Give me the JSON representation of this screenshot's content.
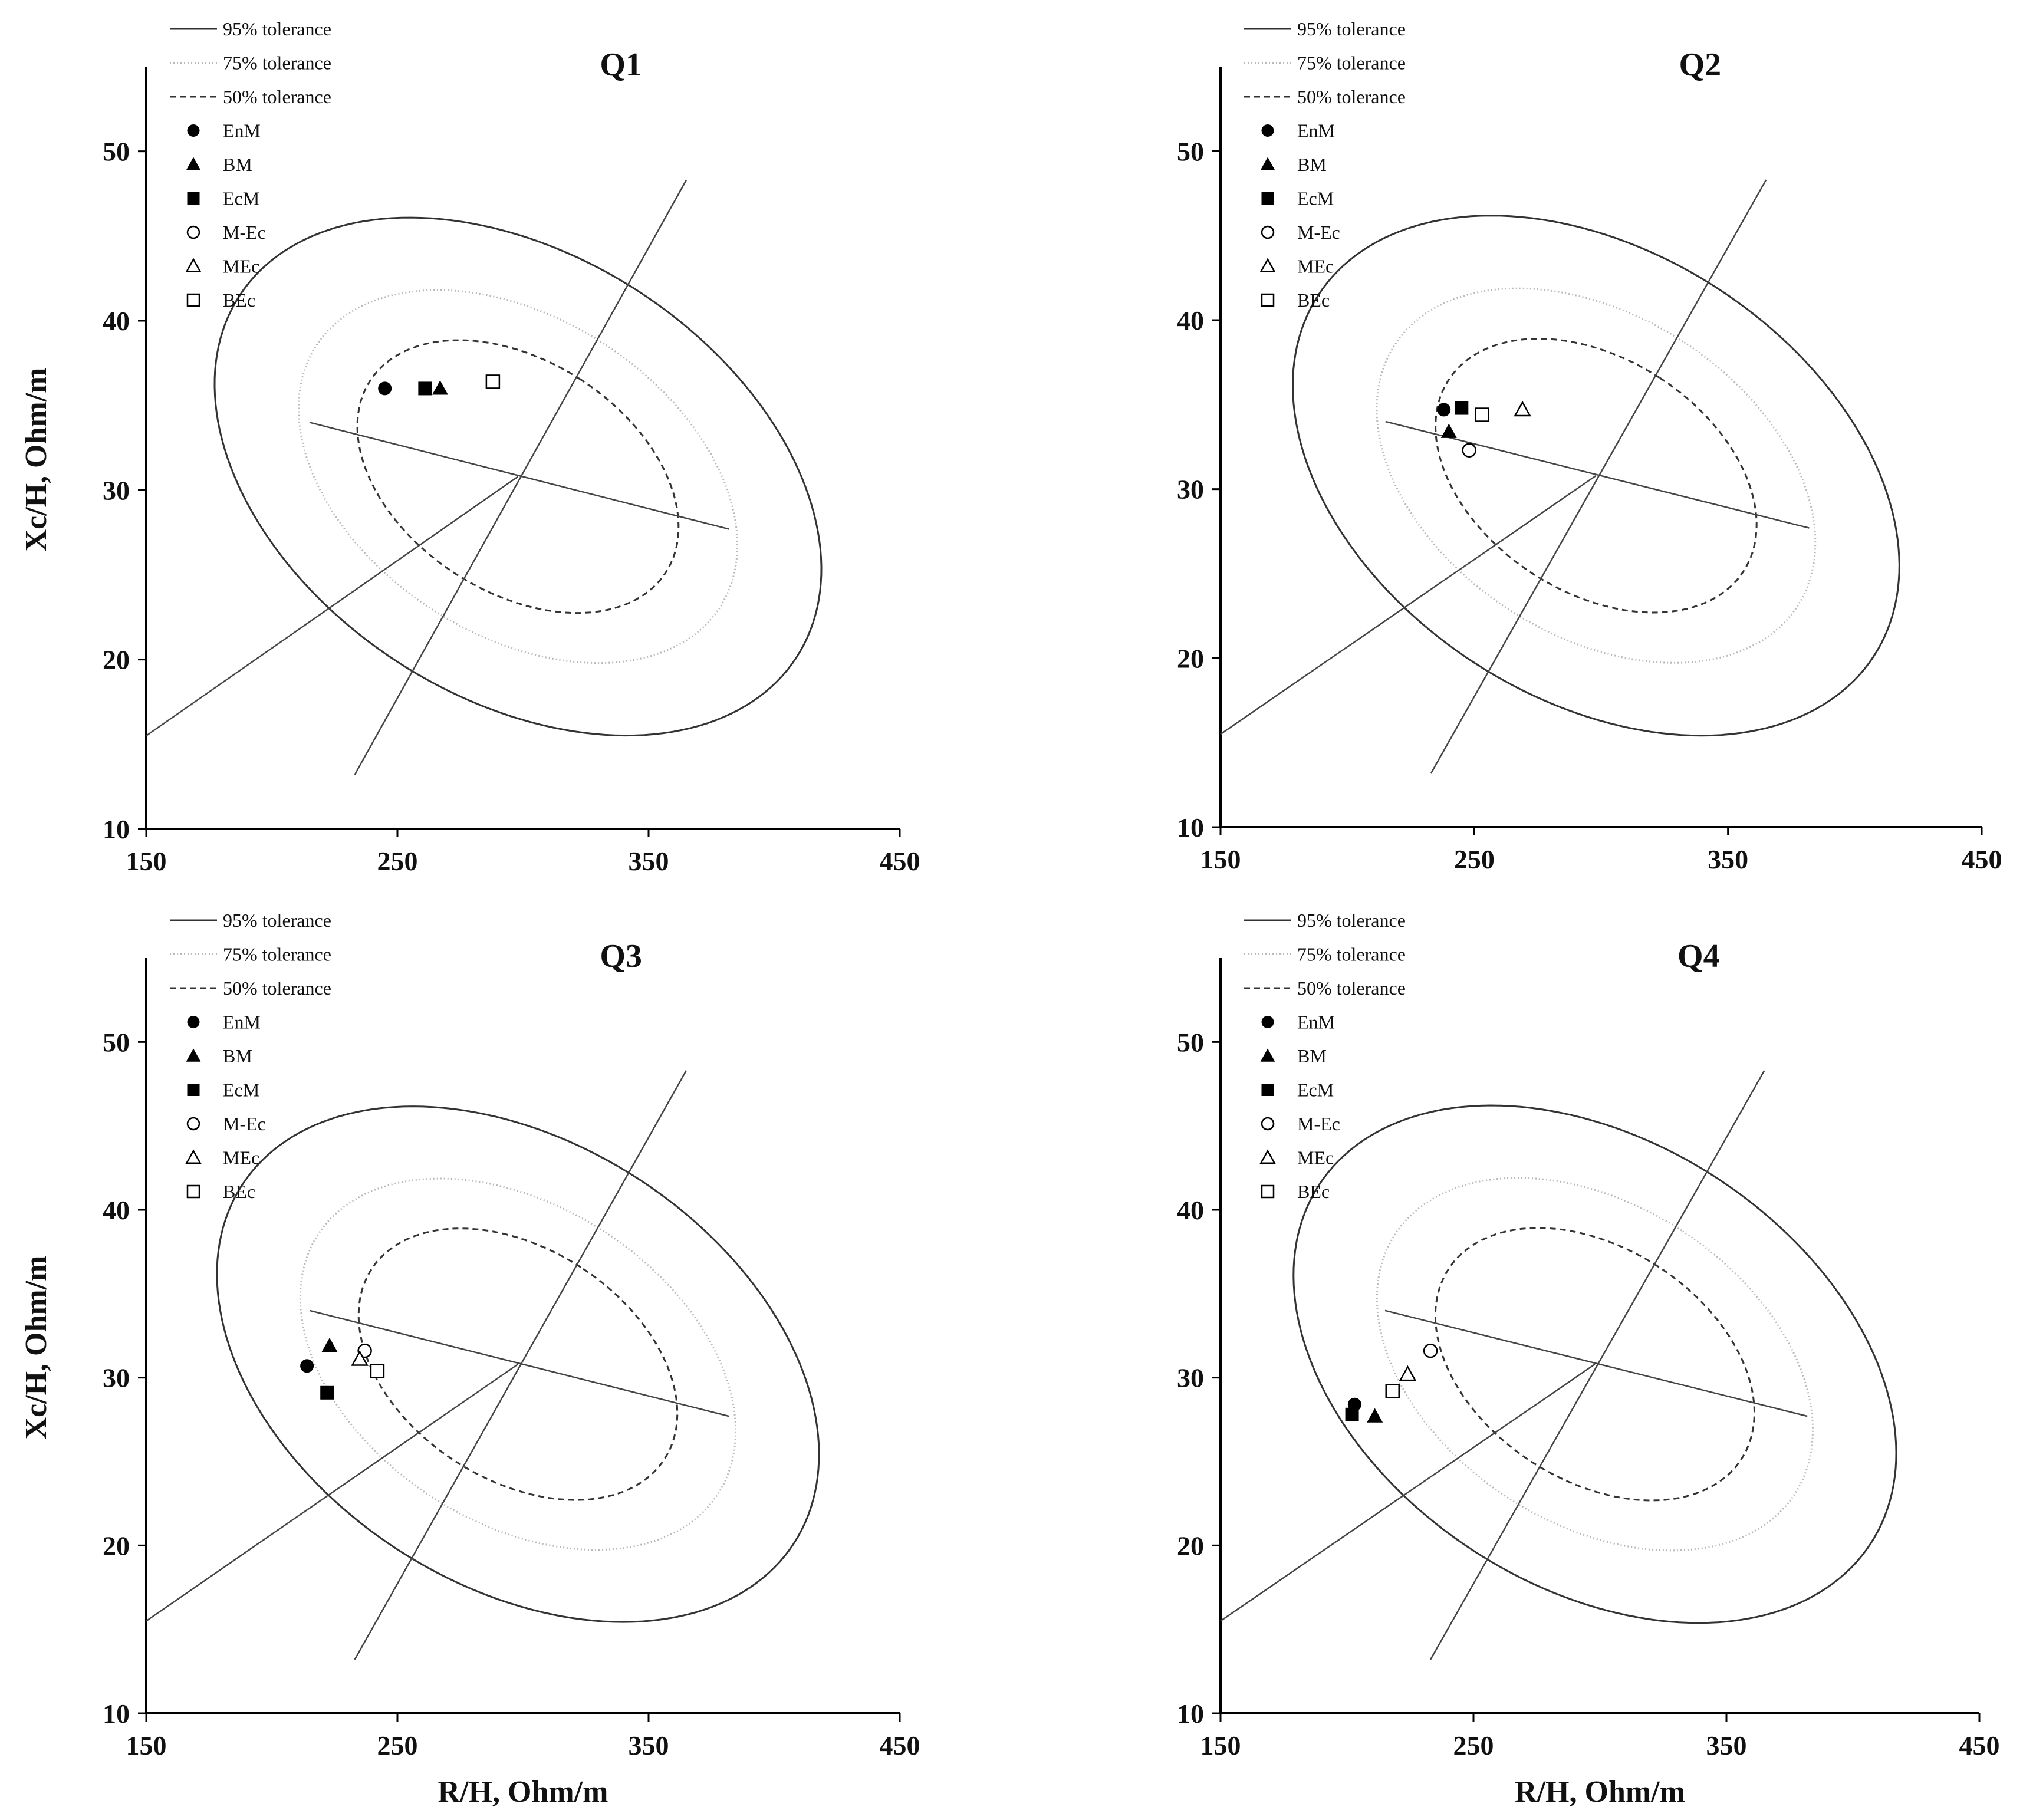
{
  "chart_data": [
    {
      "type": "scatter",
      "title": "Q1",
      "xlabel": "",
      "ylabel": "Xc/H, Ohm/m",
      "xlim": [
        150,
        450
      ],
      "ylim": [
        10,
        55
      ],
      "xticks": [
        "150",
        "250",
        "350",
        "450"
      ],
      "yticks": [
        "10",
        "20",
        "30",
        "40",
        "50"
      ],
      "legend": [
        "95% tolerance",
        "75% tolerance",
        "50% tolerance",
        "EnM",
        "BM",
        "EcM",
        "M-Ec",
        "MEc",
        "BEc"
      ],
      "ellipses": [
        {
          "name": "95% tolerance",
          "style": "solid",
          "center": [
            298,
            30.8
          ],
          "semi_axes": [
            88,
            19.6
          ],
          "angle_deg": 57
        },
        {
          "name": "75% tolerance",
          "style": "dotted",
          "center": [
            298,
            30.8
          ],
          "semi_axes": [
            63,
            14.2
          ],
          "angle_deg": 57
        },
        {
          "name": "50% tolerance",
          "style": "dashed",
          "center": [
            298,
            30.8
          ],
          "semi_axes": [
            46,
            10.4
          ],
          "angle_deg": 57
        }
      ],
      "axis_lines": [
        {
          "from": [
            233,
            13.2
          ],
          "to": [
            365,
            48.3
          ]
        },
        {
          "from": [
            215,
            34.0
          ],
          "to": [
            382,
            27.7
          ]
        },
        {
          "from": [
            150,
            15.5
          ],
          "to": [
            298,
            30.8
          ]
        }
      ],
      "series": [
        {
          "name": "EnM",
          "marker": "circle-filled",
          "x": [
            245
          ],
          "y": [
            36.0
          ]
        },
        {
          "name": "BM",
          "marker": "triangle-filled",
          "x": [
            267
          ],
          "y": [
            36.0
          ]
        },
        {
          "name": "EcM",
          "marker": "square-filled",
          "x": [
            261
          ],
          "y": [
            36.0
          ]
        },
        {
          "name": "M-Ec",
          "marker": "circle-open",
          "x": [],
          "y": []
        },
        {
          "name": "MEc",
          "marker": "triangle-open",
          "x": [],
          "y": []
        },
        {
          "name": "BEc",
          "marker": "square-open",
          "x": [
            288
          ],
          "y": [
            36.4
          ]
        }
      ]
    },
    {
      "type": "scatter",
      "title": "Q2",
      "xlabel": "",
      "ylabel": "",
      "xlim": [
        150,
        450
      ],
      "ylim": [
        10,
        55
      ],
      "xticks": [
        "150",
        "250",
        "350",
        "450"
      ],
      "yticks": [
        "10",
        "20",
        "30",
        "40",
        "50"
      ],
      "legend": [
        "95% tolerance",
        "75% tolerance",
        "50% tolerance",
        "EnM",
        "BM",
        "EcM",
        "M-Ec",
        "MEc",
        "BEc"
      ],
      "ellipses": [
        {
          "name": "95% tolerance",
          "style": "solid",
          "center": [
            298,
            30.8
          ],
          "semi_axes": [
            88,
            19.6
          ],
          "angle_deg": 57
        },
        {
          "name": "75% tolerance",
          "style": "dotted",
          "center": [
            298,
            30.8
          ],
          "semi_axes": [
            63,
            14.2
          ],
          "angle_deg": 57
        },
        {
          "name": "50% tolerance",
          "style": "dashed",
          "center": [
            298,
            30.8
          ],
          "semi_axes": [
            46,
            10.4
          ],
          "angle_deg": 57
        }
      ],
      "axis_lines": [
        {
          "from": [
            233,
            13.2
          ],
          "to": [
            365,
            48.3
          ]
        },
        {
          "from": [
            215,
            34.0
          ],
          "to": [
            382,
            27.7
          ]
        },
        {
          "from": [
            150,
            15.5
          ],
          "to": [
            298,
            30.8
          ]
        }
      ],
      "series": [
        {
          "name": "EnM",
          "marker": "circle-filled",
          "x": [
            238
          ],
          "y": [
            34.7
          ]
        },
        {
          "name": "BM",
          "marker": "triangle-filled",
          "x": [
            240
          ],
          "y": [
            33.4
          ]
        },
        {
          "name": "EcM",
          "marker": "square-filled",
          "x": [
            245
          ],
          "y": [
            34.8
          ]
        },
        {
          "name": "M-Ec",
          "marker": "circle-open",
          "x": [
            248
          ],
          "y": [
            32.3
          ]
        },
        {
          "name": "MEc",
          "marker": "triangle-open",
          "x": [
            269
          ],
          "y": [
            34.7
          ]
        },
        {
          "name": "BEc",
          "marker": "square-open",
          "x": [
            253
          ],
          "y": [
            34.4
          ]
        }
      ]
    },
    {
      "type": "scatter",
      "title": "Q3",
      "xlabel": "R/H, Ohm/m",
      "ylabel": "Xc/H, Ohm/m",
      "xlim": [
        150,
        450
      ],
      "ylim": [
        10,
        55
      ],
      "xticks": [
        "150",
        "250",
        "350",
        "450"
      ],
      "yticks": [
        "10",
        "20",
        "30",
        "40",
        "50"
      ],
      "legend": [
        "95% tolerance",
        "75% tolerance",
        "50% tolerance",
        "EnM",
        "BM",
        "EcM",
        "M-Ec",
        "MEc",
        "BEc"
      ],
      "ellipses": [
        {
          "name": "95% tolerance",
          "style": "solid",
          "center": [
            298,
            30.8
          ],
          "semi_axes": [
            88,
            19.6
          ],
          "angle_deg": 57
        },
        {
          "name": "75% tolerance",
          "style": "dotted",
          "center": [
            298,
            30.8
          ],
          "semi_axes": [
            63,
            14.2
          ],
          "angle_deg": 57
        },
        {
          "name": "50% tolerance",
          "style": "dashed",
          "center": [
            298,
            30.8
          ],
          "semi_axes": [
            46,
            10.4
          ],
          "angle_deg": 57
        }
      ],
      "axis_lines": [
        {
          "from": [
            233,
            13.2
          ],
          "to": [
            365,
            48.3
          ]
        },
        {
          "from": [
            215,
            34.0
          ],
          "to": [
            382,
            27.7
          ]
        },
        {
          "from": [
            150,
            15.5
          ],
          "to": [
            298,
            30.8
          ]
        }
      ],
      "series": [
        {
          "name": "EnM",
          "marker": "circle-filled",
          "x": [
            214
          ],
          "y": [
            30.7
          ]
        },
        {
          "name": "BM",
          "marker": "triangle-filled",
          "x": [
            223
          ],
          "y": [
            31.9
          ]
        },
        {
          "name": "EcM",
          "marker": "square-filled",
          "x": [
            222
          ],
          "y": [
            29.1
          ]
        },
        {
          "name": "M-Ec",
          "marker": "circle-open",
          "x": [
            237
          ],
          "y": [
            31.6
          ]
        },
        {
          "name": "MEc",
          "marker": "triangle-open",
          "x": [
            235
          ],
          "y": [
            31.1
          ]
        },
        {
          "name": "BEc",
          "marker": "square-open",
          "x": [
            242
          ],
          "y": [
            30.4
          ]
        }
      ]
    },
    {
      "type": "scatter",
      "title": "Q4",
      "xlabel": "R/H, Ohm/m",
      "ylabel": "",
      "xlim": [
        150,
        450
      ],
      "ylim": [
        10,
        55
      ],
      "xticks": [
        "150",
        "250",
        "350",
        "450"
      ],
      "yticks": [
        "10",
        "20",
        "30",
        "40",
        "50"
      ],
      "legend": [
        "95% tolerance",
        "75% tolerance",
        "50% tolerance",
        "EnM",
        "BM",
        "EcM",
        "M-Ec",
        "MEc",
        "BEc"
      ],
      "ellipses": [
        {
          "name": "95% tolerance",
          "style": "solid",
          "center": [
            298,
            30.8
          ],
          "semi_axes": [
            88,
            19.6
          ],
          "angle_deg": 57
        },
        {
          "name": "75% tolerance",
          "style": "dotted",
          "center": [
            298,
            30.8
          ],
          "semi_axes": [
            63,
            14.2
          ],
          "angle_deg": 57
        },
        {
          "name": "50% tolerance",
          "style": "dashed",
          "center": [
            298,
            30.8
          ],
          "semi_axes": [
            46,
            10.4
          ],
          "angle_deg": 57
        }
      ],
      "axis_lines": [
        {
          "from": [
            233,
            13.2
          ],
          "to": [
            365,
            48.3
          ]
        },
        {
          "from": [
            215,
            34.0
          ],
          "to": [
            382,
            27.7
          ]
        },
        {
          "from": [
            150,
            15.5
          ],
          "to": [
            298,
            30.8
          ]
        }
      ],
      "series": [
        {
          "name": "EnM",
          "marker": "circle-filled",
          "x": [
            203
          ],
          "y": [
            28.4
          ]
        },
        {
          "name": "BM",
          "marker": "triangle-filled",
          "x": [
            211
          ],
          "y": [
            27.7
          ]
        },
        {
          "name": "EcM",
          "marker": "square-filled",
          "x": [
            202
          ],
          "y": [
            27.8
          ]
        },
        {
          "name": "M-Ec",
          "marker": "circle-open",
          "x": [
            233
          ],
          "y": [
            31.6
          ]
        },
        {
          "name": "MEc",
          "marker": "triangle-open",
          "x": [
            224
          ],
          "y": [
            30.2
          ]
        },
        {
          "name": "BEc",
          "marker": "square-open",
          "x": [
            218
          ],
          "y": [
            29.2
          ]
        }
      ]
    }
  ]
}
